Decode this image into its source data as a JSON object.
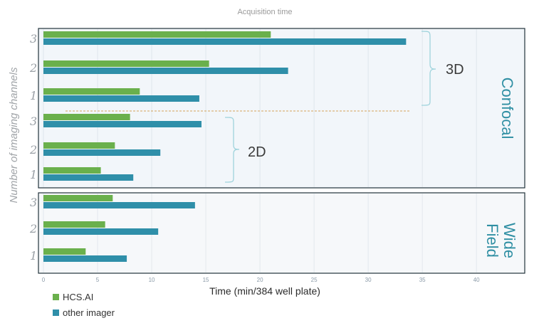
{
  "chart_data": {
    "type": "bar",
    "orientation": "horizontal",
    "title": "Acquisition time",
    "xlabel": "Time (min/384 well plate)",
    "ylabel": "Number of imaging channels",
    "xlim": [
      0,
      44
    ],
    "x_ticks": [
      0,
      5,
      10,
      15,
      20,
      25,
      30,
      35,
      40
    ],
    "grid": true,
    "legend_position": "bottom-left",
    "series_colors": {
      "hcs": "#6ab04c",
      "other": "#2f8fa9"
    },
    "series": [
      {
        "name": "HCS.AI",
        "key": "hcs"
      },
      {
        "name": "other imager",
        "key": "other"
      }
    ],
    "panels": [
      {
        "mode": "Confocal",
        "groups": [
          {
            "dimension": "3D",
            "categories": [
              "3",
              "2",
              "1"
            ],
            "hcs": [
              21.0,
              15.3,
              8.9
            ],
            "other": [
              33.5,
              22.6,
              14.4
            ]
          },
          {
            "dimension": "2D",
            "categories": [
              "3",
              "2",
              "1"
            ],
            "hcs": [
              8.0,
              6.6,
              5.3
            ],
            "other": [
              14.6,
              10.8,
              8.3
            ]
          }
        ]
      },
      {
        "mode_lines": [
          "Wide",
          "Field"
        ],
        "groups": [
          {
            "categories": [
              "3",
              "2",
              "1"
            ],
            "hcs": [
              6.4,
              5.7,
              3.9
            ],
            "other": [
              14.0,
              10.6,
              7.7
            ]
          }
        ]
      }
    ]
  }
}
